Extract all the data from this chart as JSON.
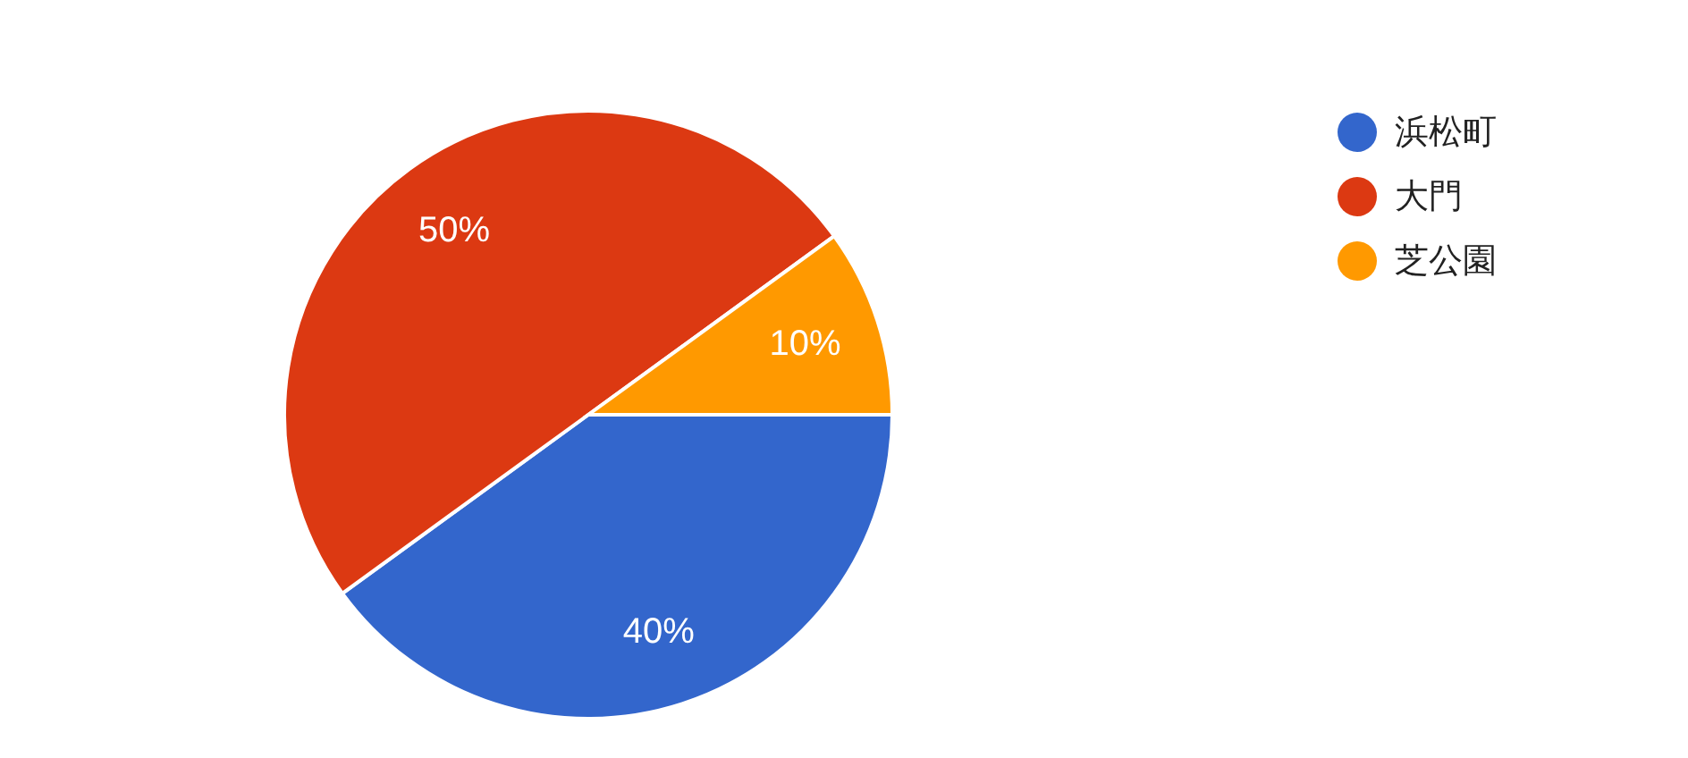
{
  "chart_data": {
    "type": "pie",
    "categories": [
      "浜松町",
      "大門",
      "芝公園"
    ],
    "values": [
      40,
      50,
      10
    ],
    "colors": [
      "#3366cc",
      "#dc3912",
      "#ff9900"
    ],
    "value_labels": [
      "40%",
      "50%",
      "10%"
    ],
    "legend": "top right"
  }
}
